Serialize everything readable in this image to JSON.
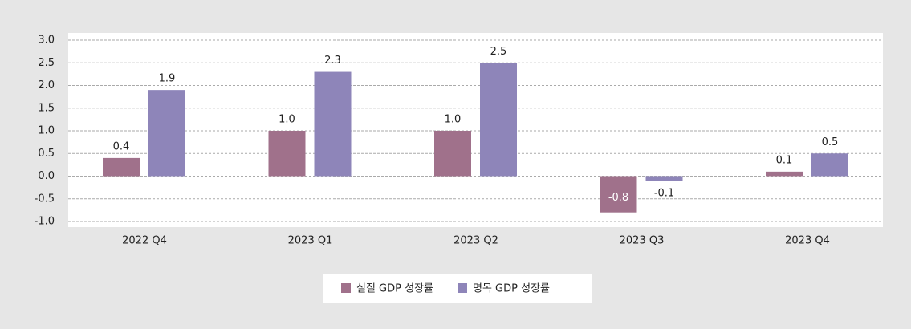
{
  "chart_data": {
    "type": "bar",
    "categories": [
      "2022 Q4",
      "2023 Q1",
      "2023 Q2",
      "2023 Q3",
      "2023 Q4"
    ],
    "series": [
      {
        "name": "실질 GDP 성장률",
        "color": "#a0718b",
        "values": [
          0.4,
          1.0,
          1.0,
          -0.8,
          0.1
        ],
        "value_labels": [
          "0.4",
          "1.0",
          "1.0",
          "-0.8",
          "0.1"
        ]
      },
      {
        "name": "명목 GDP 성장률",
        "color": "#8e85b9",
        "values": [
          1.9,
          2.3,
          2.5,
          -0.1,
          0.5
        ],
        "value_labels": [
          "1.9",
          "2.3",
          "2.5",
          "-0.1",
          "0.5"
        ]
      }
    ],
    "ylim": [
      -1,
      3
    ],
    "yticks": [
      {
        "value": -1,
        "label": "-1.0"
      },
      {
        "value": -0.5,
        "label": "-0.5"
      },
      {
        "value": 0,
        "label": "0.0"
      },
      {
        "value": 0.5,
        "label": "0.5"
      },
      {
        "value": 1,
        "label": "1.0"
      },
      {
        "value": 1.5,
        "label": "1.5"
      },
      {
        "value": 2,
        "label": "2.0"
      },
      {
        "value": 2.5,
        "label": "2.5"
      },
      {
        "value": 3,
        "label": "3.0"
      }
    ],
    "grid": true,
    "legend": "bottom"
  }
}
